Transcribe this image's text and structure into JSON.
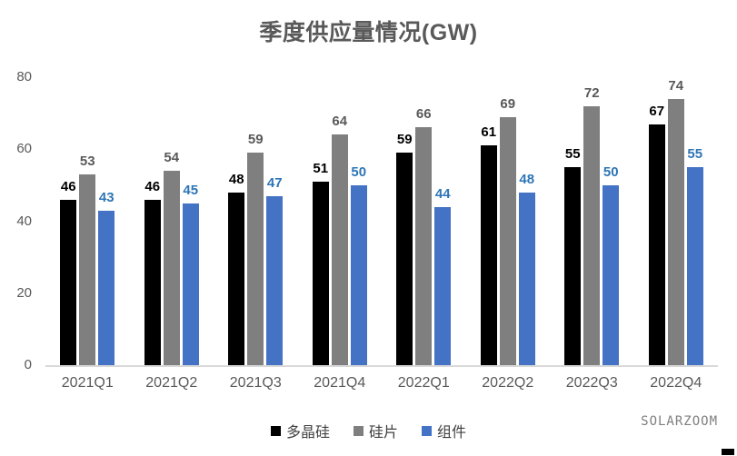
{
  "title": "季度供应量情况(GW)",
  "watermark": "SOLARZOOM",
  "chart_data": {
    "type": "bar",
    "title": "季度供应量情况(GW)",
    "categories": [
      "2021Q1",
      "2021Q2",
      "2021Q3",
      "2021Q4",
      "2022Q1",
      "2022Q2",
      "2022Q3",
      "2022Q4"
    ],
    "series": [
      {
        "name": "多晶硅",
        "color": "#000000",
        "label_color": "#000000",
        "values": [
          46,
          46,
          48,
          51,
          59,
          61,
          55,
          67
        ]
      },
      {
        "name": "硅片",
        "color": "#7F7F7F",
        "label_color": "#595959",
        "values": [
          53,
          54,
          59,
          64,
          66,
          69,
          72,
          74
        ]
      },
      {
        "name": "组件",
        "color": "#4472C4",
        "label_color": "#2E75B6",
        "values": [
          43,
          45,
          47,
          50,
          44,
          48,
          50,
          55
        ]
      }
    ],
    "ylim": [
      0,
      80
    ],
    "yticks": [
      0,
      20,
      40,
      60,
      80
    ],
    "xlabel": "",
    "ylabel": "",
    "grid": false,
    "legend_position": "bottom",
    "axis_line_color": "#d9d9d9"
  }
}
